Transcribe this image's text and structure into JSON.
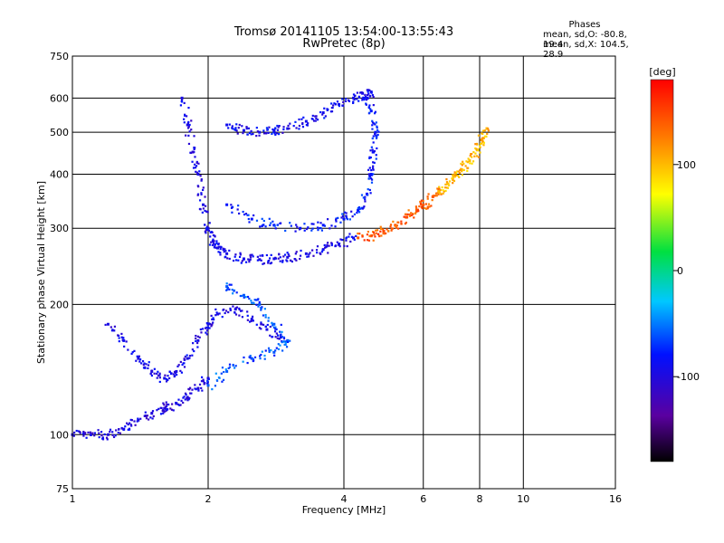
{
  "chart_data": {
    "type": "scatter",
    "title": "Tromsø 20141105 13:54:00-13:55:43",
    "subtitle": "RwPretec (8p)",
    "xlabel": "Frequency [MHz]",
    "ylabel": "Stationary phase Virtual Height [km]",
    "x_scale": "log",
    "y_scale": "log",
    "xlim": [
      1,
      16
    ],
    "ylim": [
      75,
      750
    ],
    "x_ticks": [
      "1",
      "2",
      "4",
      "6",
      "8",
      "10",
      "16"
    ],
    "x_tick_values": [
      1,
      2,
      4,
      6,
      8,
      10,
      16
    ],
    "y_ticks": [
      "75",
      "100",
      "200",
      "300",
      "400",
      "500",
      "600",
      "750"
    ],
    "y_tick_values": [
      75,
      100,
      200,
      300,
      400,
      500,
      600,
      750
    ],
    "grid": true,
    "colorbar": {
      "label": "[deg]",
      "ticks": [
        "100",
        "0",
        "-100"
      ],
      "tick_values": [
        100,
        0,
        -100
      ],
      "range": [
        -180,
        180
      ],
      "colormap": "rainbow"
    },
    "stats": {
      "header": "Phases",
      "line1": "mean, sd,O: -80.8, 19.4",
      "line2": "mean, sd,X: 104.5, 28.9"
    },
    "traces": [
      {
        "name": "",
        "phase": -100,
        "points": [
          [
            1.0,
            100
          ],
          [
            1.1,
            100
          ],
          [
            1.2,
            100
          ],
          [
            1.3,
            103
          ],
          [
            1.4,
            108
          ],
          [
            1.5,
            112
          ],
          [
            1.6,
            115
          ],
          [
            1.7,
            118
          ],
          [
            1.8,
            122
          ],
          [
            1.9,
            128
          ],
          [
            2.0,
            135
          ]
        ]
      },
      {
        "name": "",
        "phase": -95,
        "points": [
          [
            1.75,
            600
          ],
          [
            1.8,
            520
          ],
          [
            1.85,
            450
          ],
          [
            1.9,
            400
          ],
          [
            1.95,
            340
          ],
          [
            2.0,
            300
          ],
          [
            2.05,
            280
          ],
          [
            2.1,
            270
          ],
          [
            2.2,
            262
          ],
          [
            2.4,
            255
          ],
          [
            2.6,
            254
          ],
          [
            2.8,
            255
          ],
          [
            3.0,
            257
          ],
          [
            3.3,
            262
          ],
          [
            3.6,
            268
          ],
          [
            3.9,
            275
          ],
          [
            4.2,
            285
          ]
        ]
      },
      {
        "name": "",
        "phase": -90,
        "points": [
          [
            2.2,
            520
          ],
          [
            2.4,
            505
          ],
          [
            2.6,
            500
          ],
          [
            2.8,
            505
          ],
          [
            3.0,
            510
          ],
          [
            3.3,
            530
          ],
          [
            3.6,
            555
          ],
          [
            3.9,
            580
          ],
          [
            4.2,
            600
          ],
          [
            4.4,
            615
          ],
          [
            4.6,
            620
          ]
        ]
      },
      {
        "name": "",
        "phase": -80,
        "points": [
          [
            2.2,
            340
          ],
          [
            2.5,
            315
          ],
          [
            2.8,
            305
          ],
          [
            3.2,
            300
          ],
          [
            3.6,
            305
          ],
          [
            4.0,
            315
          ],
          [
            4.3,
            330
          ],
          [
            4.5,
            360
          ],
          [
            4.6,
            400
          ],
          [
            4.65,
            450
          ],
          [
            4.7,
            500
          ],
          [
            4.6,
            560
          ],
          [
            4.5,
            600
          ]
        ]
      },
      {
        "name": "",
        "phase": 140,
        "points": [
          [
            4.3,
            285
          ],
          [
            4.6,
            288
          ],
          [
            4.9,
            295
          ],
          [
            5.2,
            305
          ],
          [
            5.5,
            318
          ],
          [
            5.8,
            330
          ],
          [
            6.0,
            340
          ],
          [
            6.3,
            355
          ],
          [
            6.5,
            365
          ]
        ]
      },
      {
        "name": "",
        "phase": 100,
        "points": [
          [
            6.5,
            365
          ],
          [
            6.8,
            380
          ],
          [
            7.0,
            395
          ],
          [
            7.3,
            410
          ],
          [
            7.6,
            430
          ],
          [
            7.9,
            455
          ],
          [
            8.1,
            480
          ],
          [
            8.3,
            510
          ]
        ]
      },
      {
        "name": "",
        "phase": -95,
        "points": [
          [
            1.2,
            180
          ],
          [
            1.3,
            165
          ],
          [
            1.4,
            150
          ],
          [
            1.5,
            140
          ],
          [
            1.6,
            135
          ],
          [
            1.7,
            140
          ],
          [
            1.8,
            150
          ],
          [
            1.9,
            165
          ],
          [
            2.0,
            180
          ],
          [
            2.1,
            190
          ],
          [
            2.3,
            195
          ],
          [
            2.5,
            185
          ],
          [
            2.7,
            175
          ],
          [
            2.9,
            168
          ]
        ]
      },
      {
        "name": "",
        "phase": -60,
        "points": [
          [
            2.2,
            220
          ],
          [
            2.4,
            210
          ],
          [
            2.6,
            200
          ],
          [
            2.8,
            180
          ],
          [
            3.0,
            165
          ],
          [
            2.8,
            155
          ],
          [
            2.5,
            150
          ],
          [
            2.2,
            140
          ],
          [
            2.0,
            130
          ]
        ]
      }
    ]
  }
}
